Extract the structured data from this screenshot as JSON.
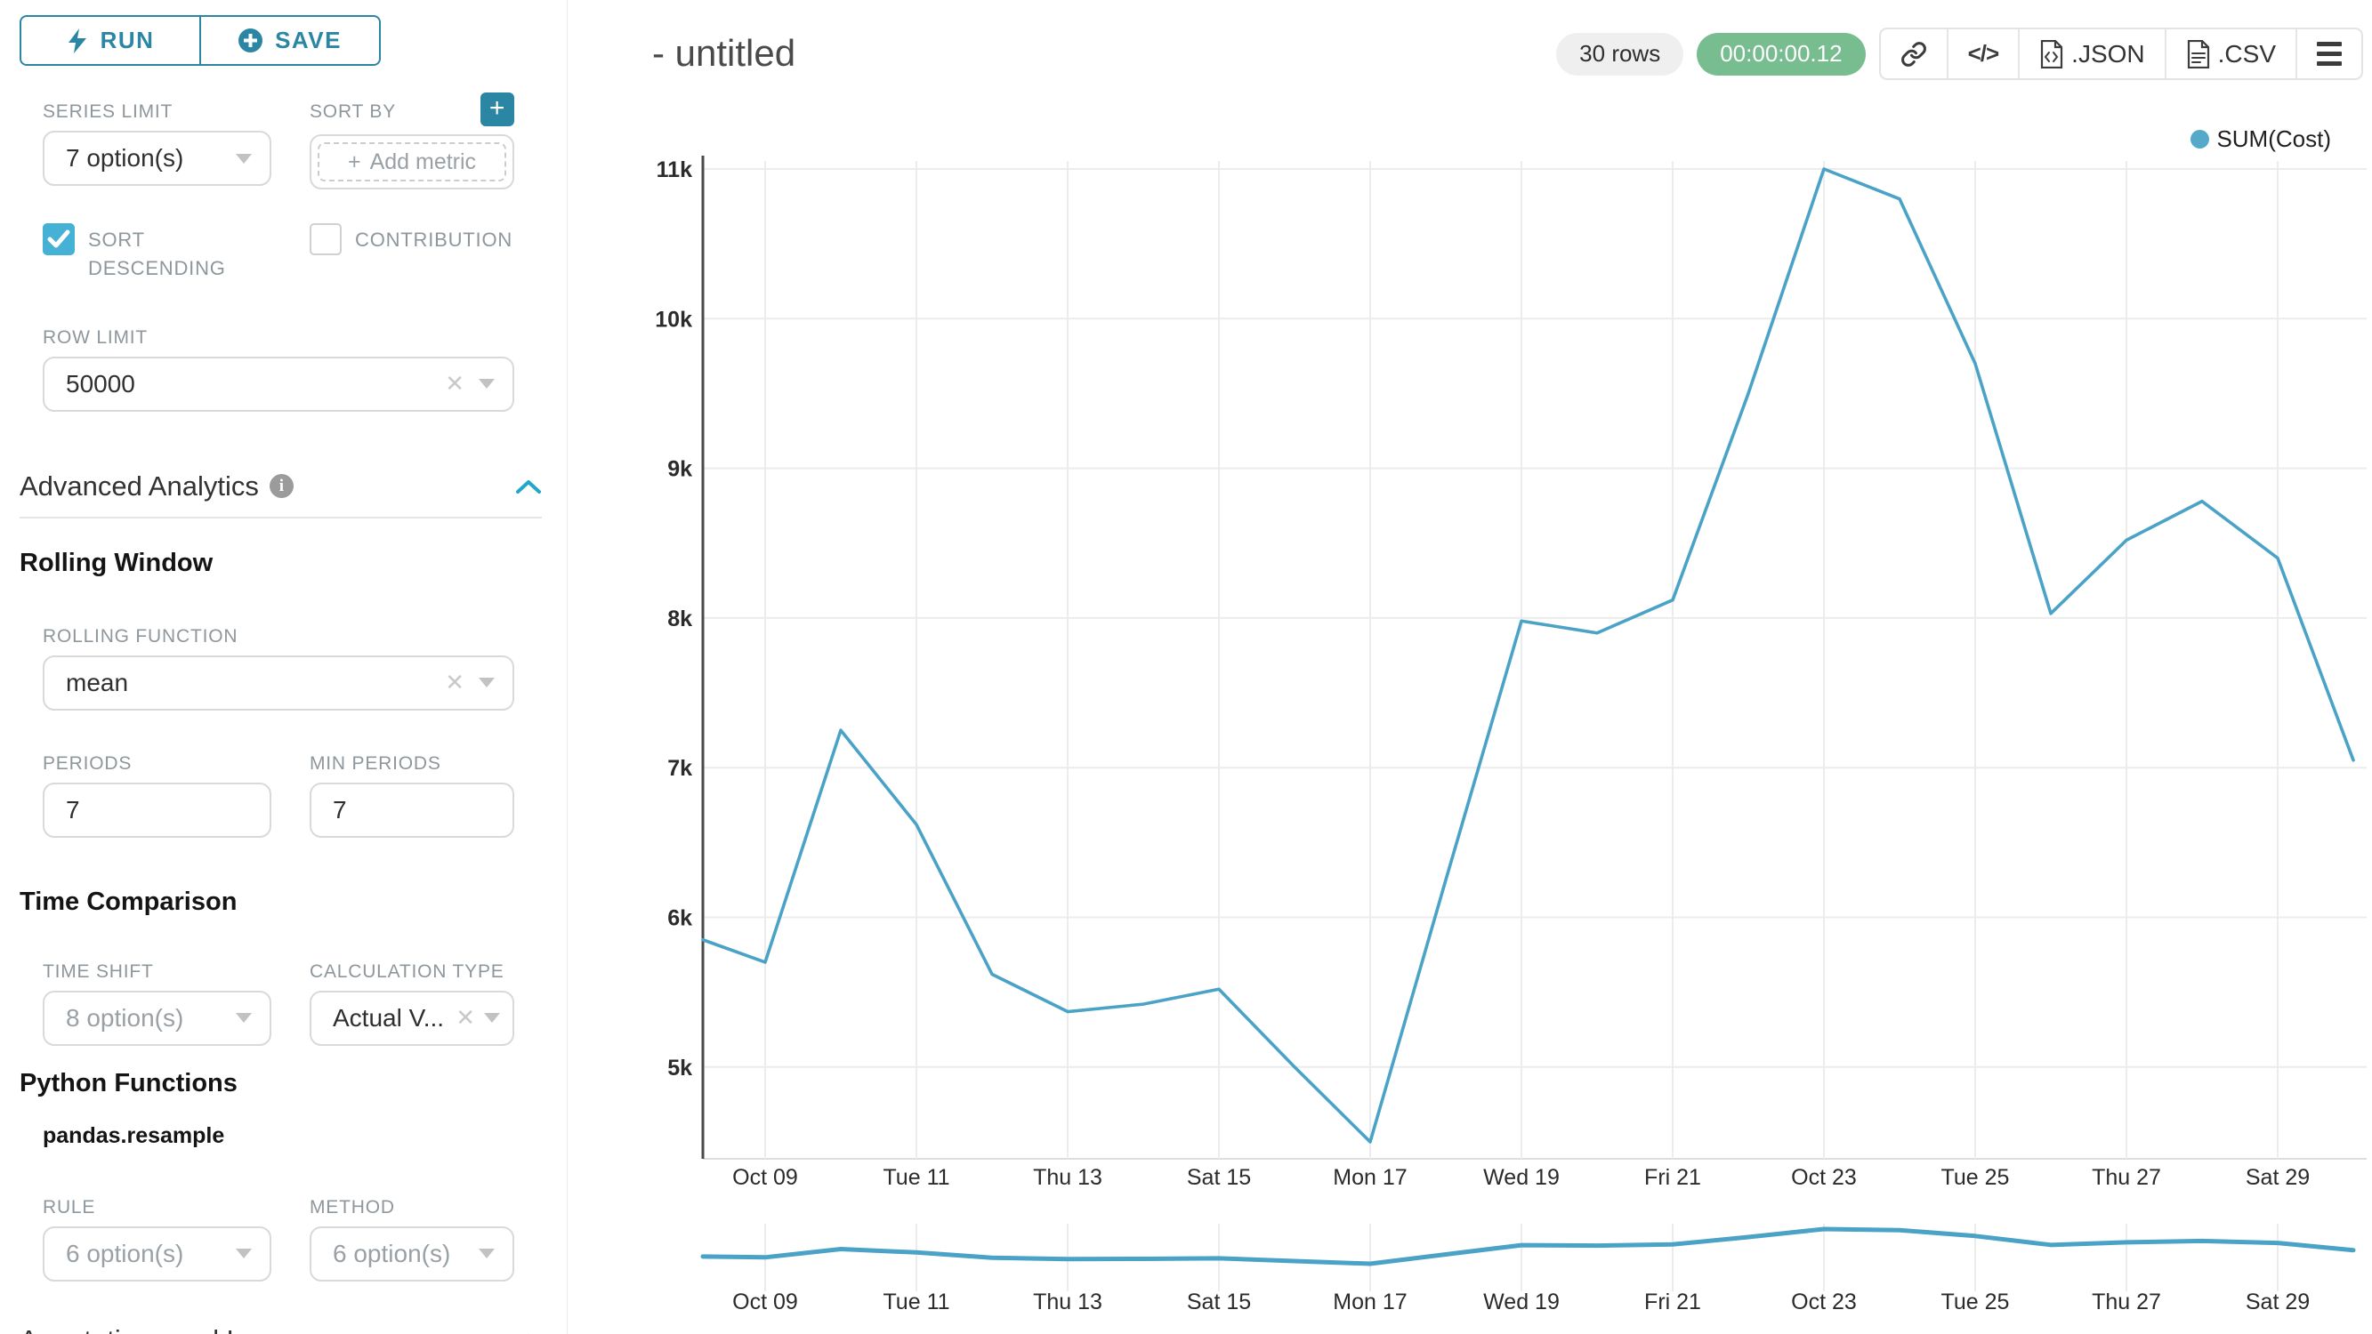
{
  "panel": {
    "run_label": "RUN",
    "save_label": "SAVE",
    "series_limit": {
      "label": "SERIES LIMIT",
      "value": "7 option(s)"
    },
    "sort_by": {
      "label": "SORT BY",
      "placeholder": "Add metric"
    },
    "sort_descending_label": "SORT DESCENDING",
    "contribution_label": "CONTRIBUTION",
    "checkboxes": {
      "sort_descending": true,
      "contribution": false
    },
    "row_limit": {
      "label": "ROW LIMIT",
      "value": "50000"
    },
    "advanced_analytics_title": "Advanced Analytics",
    "rolling_window_title": "Rolling Window",
    "rolling_function": {
      "label": "ROLLING FUNCTION",
      "value": "mean"
    },
    "periods": {
      "label": "PERIODS",
      "value": "7"
    },
    "min_periods": {
      "label": "MIN PERIODS",
      "value": "7"
    },
    "time_comparison_title": "Time Comparison",
    "time_shift": {
      "label": "TIME SHIFT",
      "value": "8 option(s)"
    },
    "calculation_type": {
      "label": "CALCULATION TYPE",
      "value": "Actual V..."
    },
    "python_functions_title": "Python Functions",
    "pandas_resample_label": "pandas.resample",
    "rule": {
      "label": "RULE",
      "value": "6 option(s)"
    },
    "method": {
      "label": "METHOD",
      "value": "6 option(s)"
    },
    "annotations_title": "Annotations and Layers"
  },
  "header": {
    "title": "- untitled",
    "rows_badge": "30 rows",
    "timer_badge": "00:00:00.12",
    "json_label": ".JSON",
    "csv_label": ".CSV"
  },
  "colors": {
    "primary_teal": "#2b86a3",
    "checkbox_teal": "#45b1d4",
    "line": "#4aa3c6",
    "legend_dot": "#55a9c9",
    "grid": "#ececec",
    "axis": "#4a4a4a",
    "tick_text": "#2b2b2b",
    "timer_green": "#77bd8f"
  },
  "chart_data": {
    "type": "line",
    "title": "- untitled",
    "legend": [
      "SUM(Cost)"
    ],
    "grid": true,
    "legend_position": "top-right",
    "x": [
      "Oct 08",
      "Oct 09",
      "Oct 10",
      "Oct 11",
      "Oct 12",
      "Oct 13",
      "Oct 14",
      "Oct 15",
      "Oct 16",
      "Oct 17",
      "Oct 18",
      "Oct 19",
      "Oct 20",
      "Oct 21",
      "Oct 22",
      "Oct 23",
      "Oct 24",
      "Oct 25",
      "Oct 26",
      "Oct 27",
      "Oct 28",
      "Oct 29",
      "Oct 30"
    ],
    "series": [
      {
        "name": "SUM(Cost)",
        "values": [
          5850,
          5700,
          7250,
          6620,
          5620,
          5370,
          5420,
          5520,
          5000,
          4500,
          6250,
          7980,
          7900,
          8120,
          9500,
          11000,
          10800,
          9700,
          8030,
          8520,
          8780,
          8400,
          7050
        ]
      }
    ],
    "x_tick_labels": [
      "Oct 09",
      "Tue 11",
      "Thu 13",
      "Sat 15",
      "Mon 17",
      "Wed 19",
      "Fri 21",
      "Oct 23",
      "Tue 25",
      "Thu 27",
      "Sat 29"
    ],
    "x_tick_indices": [
      1,
      3,
      5,
      7,
      9,
      11,
      13,
      15,
      17,
      19,
      21
    ],
    "y_tick_labels": [
      "11k",
      "10k",
      "9k",
      "8k",
      "7k",
      "6k",
      "5k"
    ],
    "y_tick_values": [
      11000,
      10000,
      9000,
      8000,
      7000,
      6000,
      5000
    ],
    "ylim": [
      4390,
      11100
    ],
    "has_mini_preview": true
  }
}
